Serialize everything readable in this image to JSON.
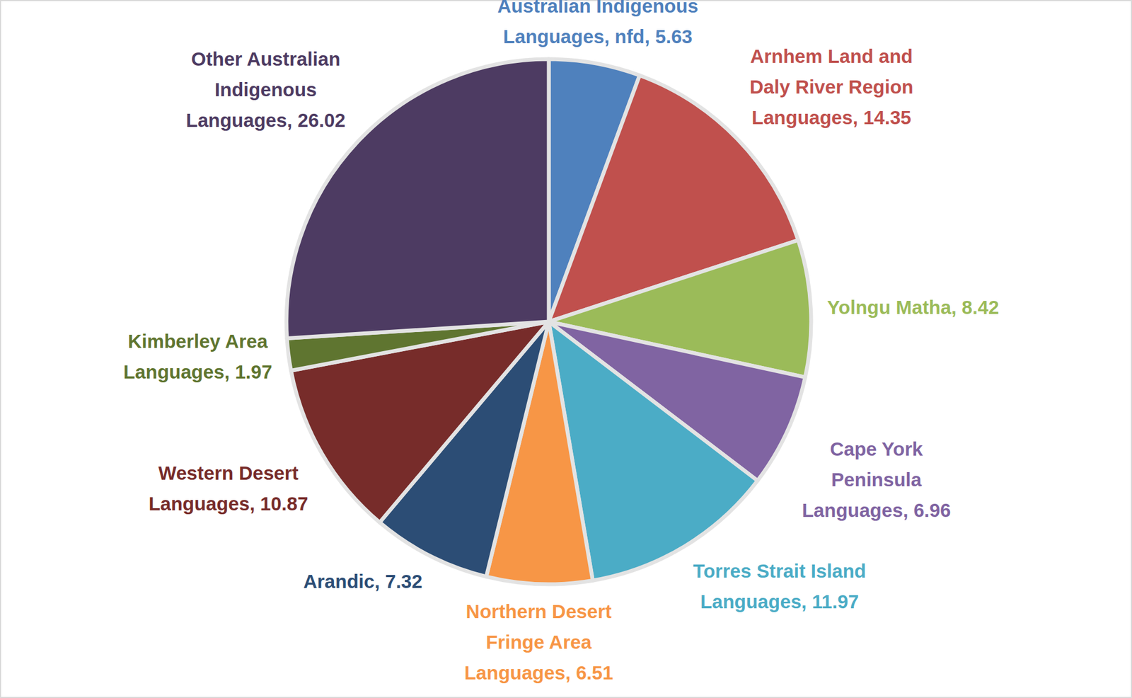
{
  "chart_data": {
    "type": "pie",
    "categories": [
      "Australian Indigenous Languages, nfd",
      "Arnhem Land and Daly River Region Languages",
      "Yolngu Matha",
      "Cape York Peninsula Languages",
      "Torres Strait Island Languages",
      "Northern Desert Fringe Area Languages",
      "Arandic",
      "Western Desert Languages",
      "Kimberley Area Languages",
      "Other Australian Indigenous Languages"
    ],
    "values": [
      5.63,
      14.35,
      8.42,
      6.96,
      11.97,
      6.51,
      7.32,
      10.87,
      1.97,
      26.02
    ],
    "colors": [
      "#4f81bd",
      "#c0504d",
      "#9bbb59",
      "#8064a2",
      "#4bacc6",
      "#f79646",
      "#2c4d75",
      "#772c2a",
      "#5f7530",
      "#4d3b62"
    ],
    "data_labels": true
  }
}
